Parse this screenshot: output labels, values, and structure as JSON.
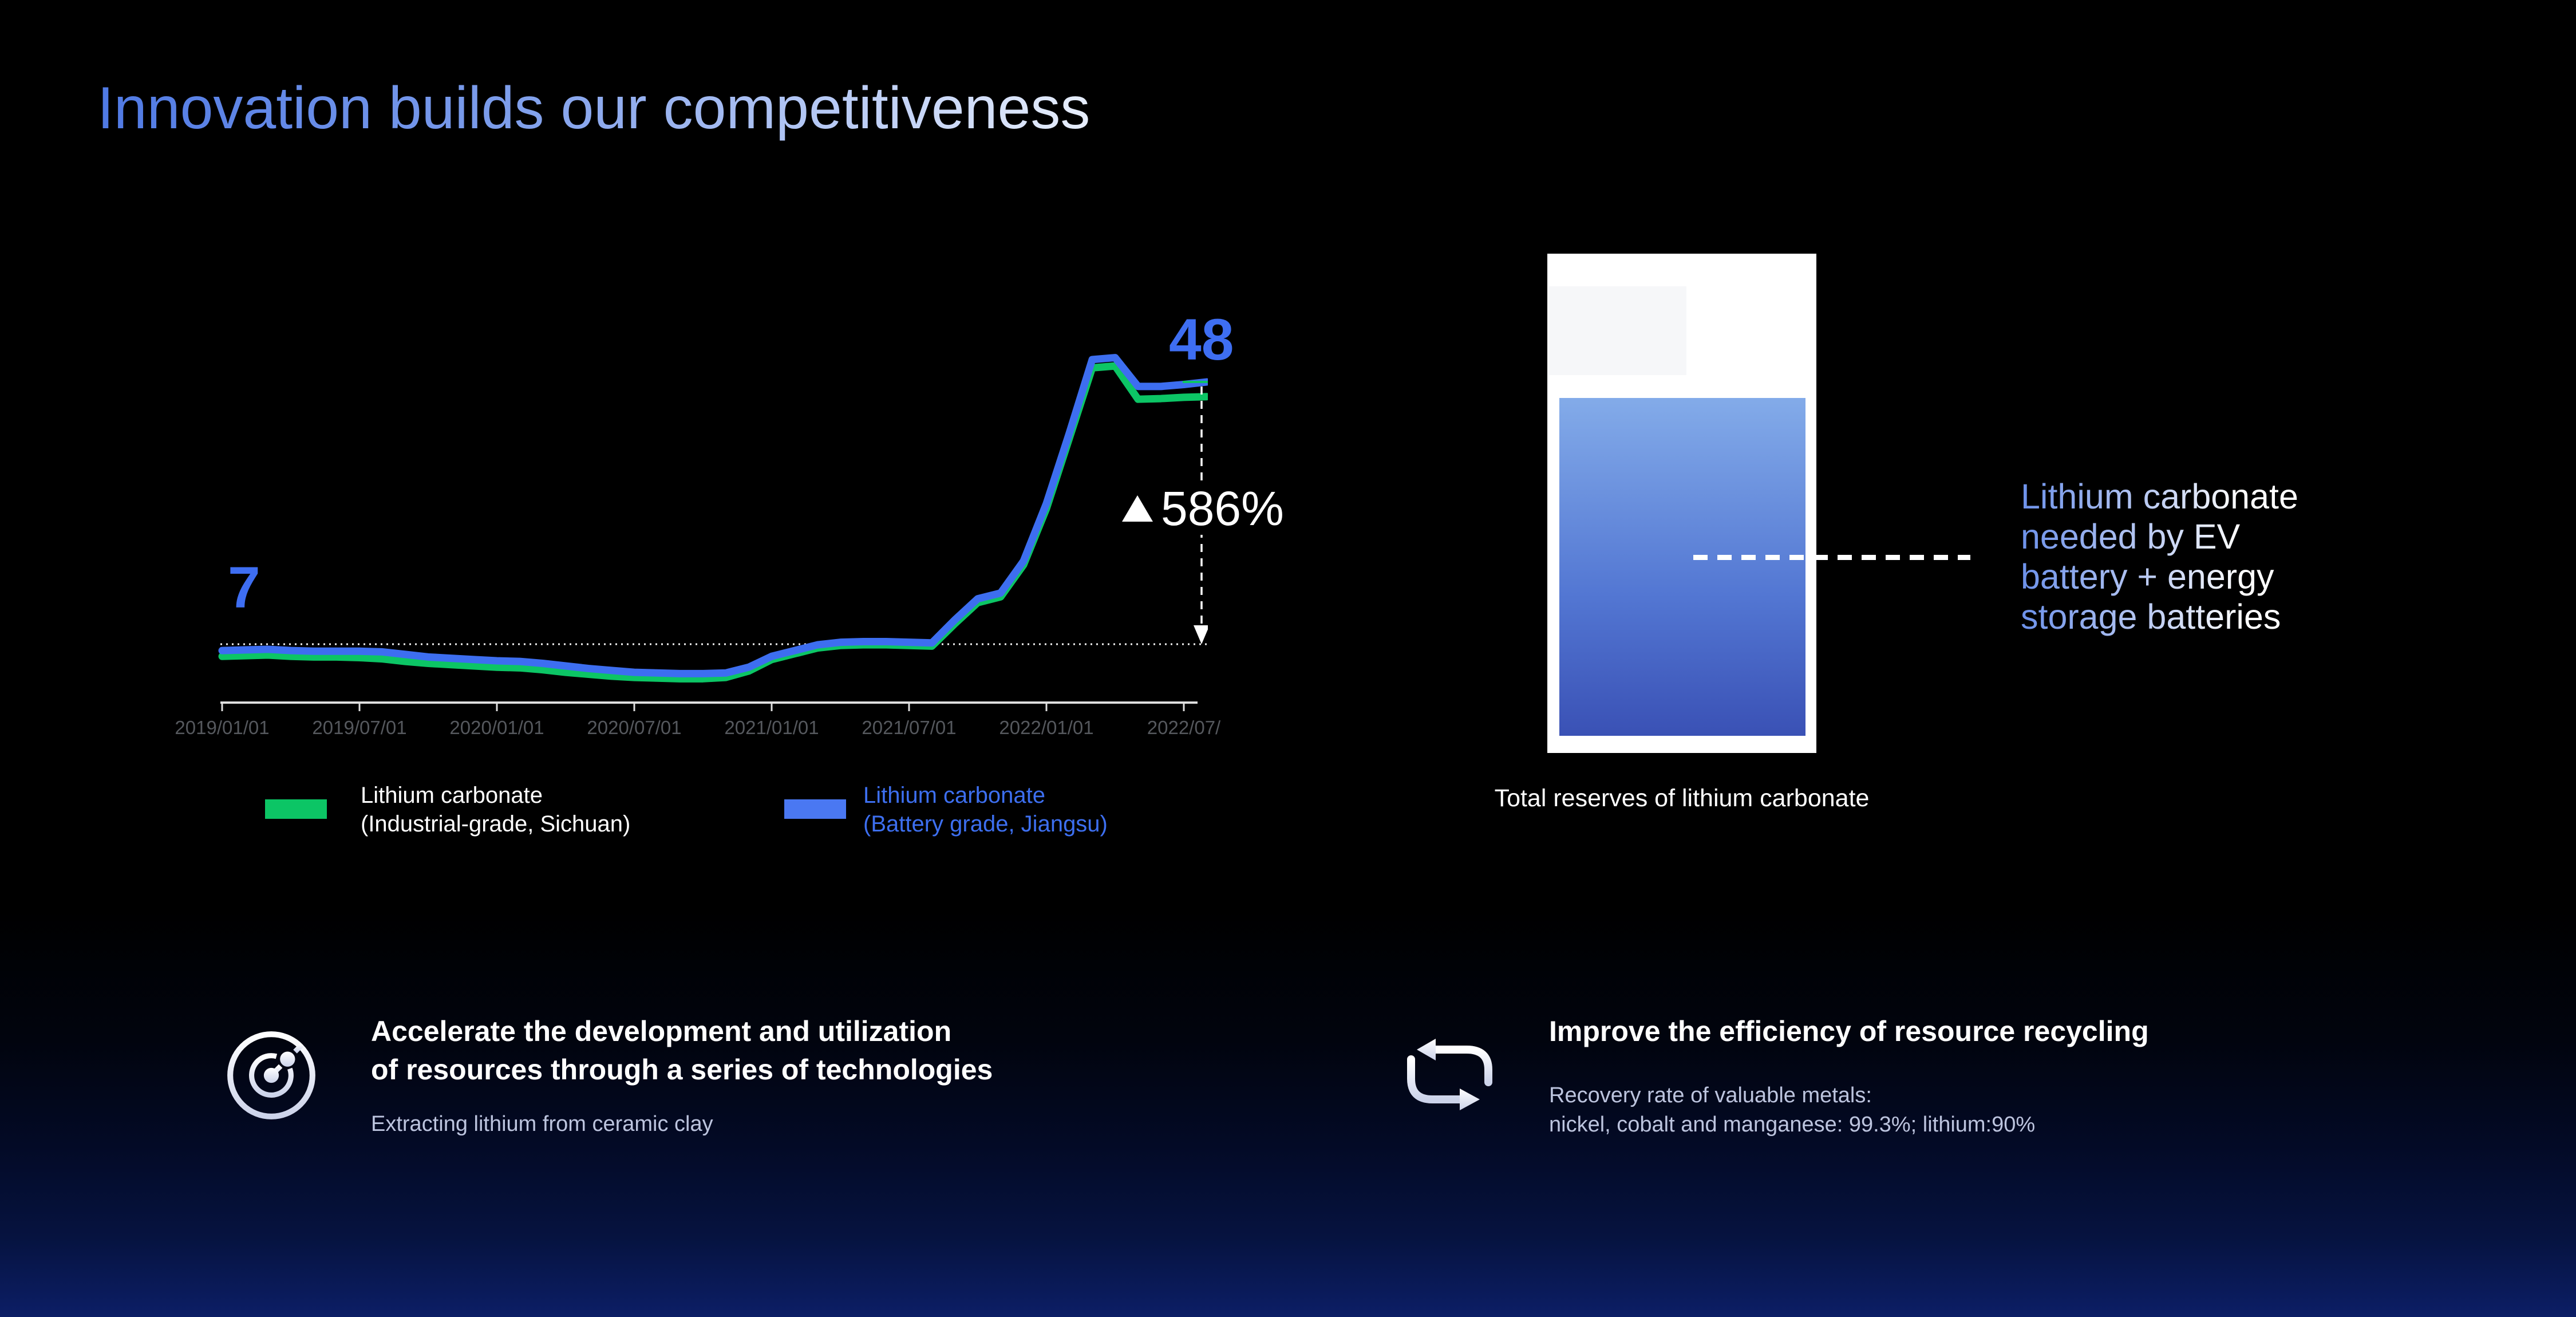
{
  "slide": {
    "title": "Innovation builds our competitiveness"
  },
  "price_chart": {
    "start_label": "7",
    "end_label": "48",
    "change_label": "586%",
    "x_axis_ticks": [
      "2019/01/01",
      "2019/07/01",
      "2020/01/01",
      "2020/07/01",
      "2021/01/01",
      "2021/07/01",
      "2022/01/01",
      "2022/07/"
    ],
    "legend": [
      {
        "line1": "Lithium carbonate",
        "line2": "(Industrial-grade, Sichuan)",
        "color": "#0cc565"
      },
      {
        "line1": "Lithium carbonate",
        "line2": "(Battery grade, Jiangsu)",
        "color": "#4a78f2"
      }
    ]
  },
  "chart_data": {
    "type": "line",
    "title": "",
    "xlabel": "",
    "ylabel": "",
    "x": [
      "2019/01",
      "2019/02",
      "2019/03",
      "2019/04",
      "2019/05",
      "2019/06",
      "2019/07",
      "2019/08",
      "2019/09",
      "2019/10",
      "2019/11",
      "2019/12",
      "2020/01",
      "2020/02",
      "2020/03",
      "2020/04",
      "2020/05",
      "2020/06",
      "2020/07",
      "2020/08",
      "2020/09",
      "2020/10",
      "2020/11",
      "2020/12",
      "2021/01",
      "2021/02",
      "2021/03",
      "2021/04",
      "2021/05",
      "2021/06",
      "2021/07",
      "2021/08",
      "2021/09",
      "2021/10",
      "2021/11",
      "2021/12",
      "2022/01",
      "2022/02",
      "2022/03",
      "2022/04",
      "2022/05",
      "2022/06",
      "2022/07",
      "2022/08"
    ],
    "series": [
      {
        "name": "Lithium carbonate (Industrial-grade, Sichuan)",
        "color": "#0cc565",
        "values": [
          5.1,
          5.2,
          5.3,
          5.1,
          5.0,
          5.0,
          4.9,
          4.7,
          4.3,
          4.0,
          3.8,
          3.6,
          3.4,
          3.3,
          3.0,
          2.6,
          2.3,
          2.0,
          1.8,
          1.7,
          1.6,
          1.6,
          1.8,
          2.8,
          4.6,
          5.5,
          6.4,
          6.8,
          6.9,
          6.9,
          6.8,
          6.7,
          10.2,
          13.5,
          14.4,
          19.4,
          28.2,
          39.2,
          50.2,
          50.5,
          45.3,
          45.4,
          45.6,
          45.7
        ]
      },
      {
        "name": "Lithium carbonate (Battery grade, Jiangsu)",
        "color": "#3d6ef0",
        "values": [
          6.0,
          6.1,
          6.2,
          6.0,
          5.9,
          5.9,
          5.9,
          5.8,
          5.4,
          5.0,
          4.8,
          4.6,
          4.4,
          4.3,
          4.0,
          3.6,
          3.2,
          2.9,
          2.6,
          2.5,
          2.4,
          2.4,
          2.5,
          3.4,
          5.1,
          6.0,
          6.9,
          7.3,
          7.4,
          7.4,
          7.3,
          7.2,
          10.8,
          14.1,
          15.0,
          20.0,
          29.0,
          40.0,
          51.5,
          51.8,
          47.3,
          47.3,
          47.6,
          48.0
        ]
      }
    ],
    "reference_line": 7,
    "ylim": [
      0,
      55
    ],
    "grid": false,
    "legend_position": "bottom",
    "annotations": [
      {
        "text": "7",
        "meaning": "starting price level (dotted reference line)"
      },
      {
        "text": "48",
        "meaning": "ending price of battery grade line"
      },
      {
        "text": "▲586%",
        "meaning": "increase from 7 to 48"
      }
    ]
  },
  "reserves": {
    "caption": "Total reserves of lithium carbonate",
    "note_lines": [
      "Lithium carbonate",
      "needed by EV",
      "battery + energy",
      "storage batteries"
    ]
  },
  "feature_left": {
    "heading_line1": "Accelerate the development and utilization",
    "heading_line2": "of resources through a series of technologies",
    "sub": "Extracting lithium from ceramic clay"
  },
  "feature_right": {
    "heading": "Improve the efficiency of resource recycling",
    "sub_line1": "Recovery rate of valuable metals:",
    "sub_line2": "nickel, cobalt and  manganese: 99.3%; lithium:90%"
  }
}
